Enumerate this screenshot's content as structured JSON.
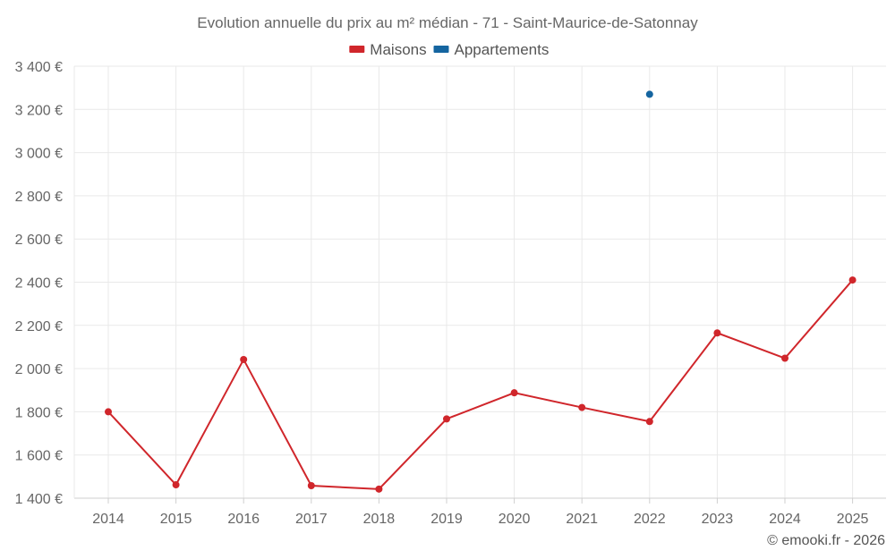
{
  "chart_data": {
    "type": "line",
    "title": "Evolution annuelle du prix au m² médian - 71 - Saint-Maurice-de-Satonnay",
    "categories": [
      "2014",
      "2015",
      "2016",
      "2017",
      "2018",
      "2019",
      "2020",
      "2021",
      "2022",
      "2023",
      "2024",
      "2025"
    ],
    "series": [
      {
        "name": "Maisons",
        "color": "#d0262b",
        "values": [
          1800,
          1462,
          2042,
          1458,
          1442,
          1767,
          1888,
          1820,
          1755,
          2165,
          2048,
          2410
        ]
      },
      {
        "name": "Appartements",
        "color": "#1565a0",
        "values": [
          null,
          null,
          null,
          null,
          null,
          null,
          null,
          null,
          3270,
          null,
          null,
          null
        ]
      }
    ],
    "ylim": [
      1400,
      3400
    ],
    "yticks": [
      1400,
      1600,
      1800,
      2000,
      2200,
      2400,
      2600,
      2800,
      3000,
      3200,
      3400
    ],
    "ytick_labels": [
      "1 400 €",
      "1 600 €",
      "1 800 €",
      "2 000 €",
      "2 200 €",
      "2 400 €",
      "2 600 €",
      "2 800 €",
      "3 000 €",
      "3 200 €",
      "3 400 €"
    ],
    "grid": true,
    "legend_position": "top-center"
  },
  "credit": "© emooki.fr - 2026"
}
